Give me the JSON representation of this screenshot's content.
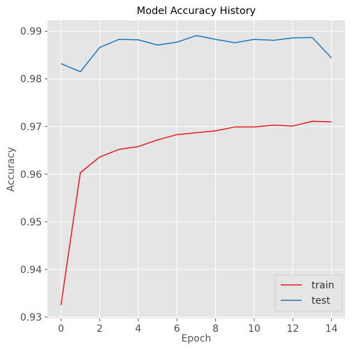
{
  "chart_data": {
    "type": "line",
    "title": "Model Accuracy History",
    "xlabel": "Epoch",
    "ylabel": "Accuracy",
    "xlim": [
      -0.7,
      14.7
    ],
    "ylim": [
      0.9297,
      0.9923
    ],
    "xticks": [
      0,
      2,
      4,
      6,
      8,
      10,
      12,
      14
    ],
    "xtick_labels": [
      "0",
      "2",
      "4",
      "6",
      "8",
      "10",
      "12",
      "14"
    ],
    "yticks": [
      0.93,
      0.94,
      0.95,
      0.96,
      0.97,
      0.98,
      0.99
    ],
    "ytick_labels": [
      "0.93",
      "0.94",
      "0.95",
      "0.96",
      "0.97",
      "0.98",
      "0.99"
    ],
    "grid": true,
    "legend_position": "bottom-right",
    "x": [
      0,
      1,
      2,
      3,
      4,
      5,
      6,
      7,
      8,
      9,
      10,
      11,
      12,
      13,
      14
    ],
    "series": [
      {
        "name": "train",
        "color": "#E41A1C",
        "values": [
          0.9325,
          0.9603,
          0.9636,
          0.9652,
          0.9658,
          0.9672,
          0.9683,
          0.9687,
          0.9691,
          0.9699,
          0.9699,
          0.9703,
          0.9701,
          0.9711,
          0.971
        ]
      },
      {
        "name": "test",
        "color": "#1F77B4",
        "values": [
          0.9832,
          0.9815,
          0.9866,
          0.9883,
          0.9882,
          0.9871,
          0.9877,
          0.9891,
          0.9883,
          0.9876,
          0.9883,
          0.9881,
          0.9886,
          0.9887,
          0.9844
        ]
      }
    ],
    "colors": {
      "plot_background": "#E5E5E5",
      "grid": "#FFFFFF"
    }
  }
}
